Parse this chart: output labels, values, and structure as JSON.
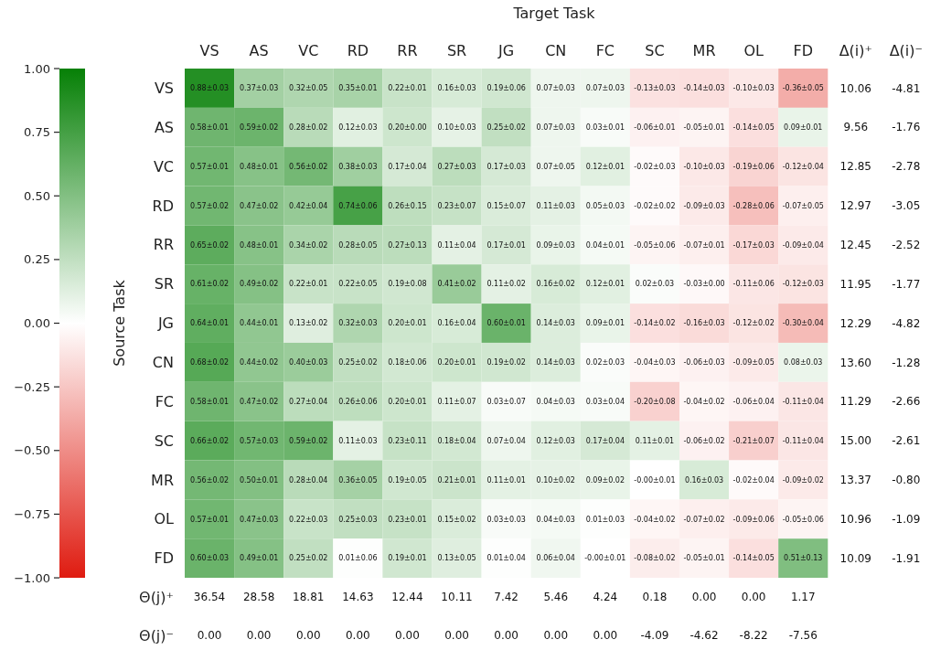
{
  "chart_data": [
    {
      "type": "heatmap",
      "xlabel": "Target Task",
      "ylabel": "Source Task",
      "categories": [
        "VS",
        "AS",
        "VC",
        "RD",
        "RR",
        "SR",
        "JG",
        "CN",
        "FC",
        "SC",
        "MR",
        "OL",
        "FD"
      ],
      "y_categories": [
        "VS",
        "AS",
        "VC",
        "RD",
        "RR",
        "SR",
        "JG",
        "CN",
        "FC",
        "SC",
        "MR",
        "OL",
        "FD"
      ],
      "cells": [
        [
          0.88,
          0.37,
          0.32,
          0.35,
          0.22,
          0.16,
          0.19,
          0.07,
          0.07,
          -0.13,
          -0.14,
          -0.1,
          -0.36
        ],
        [
          0.58,
          0.59,
          0.28,
          0.12,
          0.2,
          0.1,
          0.25,
          0.07,
          0.03,
          -0.06,
          -0.05,
          -0.14,
          0.09
        ],
        [
          0.57,
          0.48,
          0.56,
          0.38,
          0.17,
          0.27,
          0.17,
          0.07,
          0.12,
          -0.02,
          -0.1,
          -0.19,
          -0.12
        ],
        [
          0.57,
          0.47,
          0.42,
          0.74,
          0.26,
          0.23,
          0.15,
          0.11,
          0.05,
          -0.02,
          -0.09,
          -0.28,
          -0.07
        ],
        [
          0.65,
          0.48,
          0.34,
          0.28,
          0.27,
          0.11,
          0.17,
          0.09,
          0.04,
          -0.05,
          -0.07,
          -0.17,
          -0.09
        ],
        [
          0.61,
          0.49,
          0.22,
          0.22,
          0.19,
          0.41,
          0.11,
          0.16,
          0.12,
          0.02,
          -0.03,
          -0.11,
          -0.12
        ],
        [
          0.64,
          0.44,
          0.13,
          0.32,
          0.2,
          0.16,
          0.6,
          0.14,
          0.09,
          -0.14,
          -0.16,
          -0.12,
          -0.3
        ],
        [
          0.68,
          0.44,
          0.4,
          0.25,
          0.18,
          0.2,
          0.19,
          0.14,
          0.02,
          -0.04,
          -0.06,
          -0.09,
          0.08
        ],
        [
          0.58,
          0.47,
          0.27,
          0.26,
          0.2,
          0.11,
          0.03,
          0.04,
          0.03,
          -0.2,
          -0.04,
          -0.06,
          -0.11
        ],
        [
          0.66,
          0.57,
          0.59,
          0.11,
          0.23,
          0.18,
          0.07,
          0.12,
          0.17,
          0.11,
          -0.06,
          -0.21,
          -0.11
        ],
        [
          0.56,
          0.5,
          0.28,
          0.36,
          0.19,
          0.21,
          0.11,
          0.1,
          0.09,
          0.0,
          0.16,
          -0.02,
          -0.09
        ],
        [
          0.57,
          0.47,
          0.22,
          0.25,
          0.23,
          0.15,
          0.03,
          0.04,
          0.01,
          -0.04,
          -0.07,
          -0.09,
          -0.05
        ],
        [
          0.6,
          0.49,
          0.25,
          0.01,
          0.19,
          0.13,
          0.01,
          0.06,
          0.0,
          -0.08,
          -0.05,
          -0.14,
          0.51
        ]
      ],
      "cell_labels": [
        [
          "0.88±0.03",
          "0.37±0.03",
          "0.32±0.05",
          "0.35±0.01",
          "0.22±0.01",
          "0.16±0.03",
          "0.19±0.06",
          "0.07±0.03",
          "0.07±0.03",
          "-0.13±0.03",
          "-0.14±0.03",
          "-0.10±0.03",
          "-0.36±0.05"
        ],
        [
          "0.58±0.01",
          "0.59±0.02",
          "0.28±0.02",
          "0.12±0.03",
          "0.20±0.00",
          "0.10±0.03",
          "0.25±0.02",
          "0.07±0.03",
          "0.03±0.01",
          "-0.06±0.01",
          "-0.05±0.01",
          "-0.14±0.05",
          "0.09±0.01"
        ],
        [
          "0.57±0.01",
          "0.48±0.01",
          "0.56±0.02",
          "0.38±0.03",
          "0.17±0.04",
          "0.27±0.03",
          "0.17±0.03",
          "0.07±0.05",
          "0.12±0.01",
          "-0.02±0.03",
          "-0.10±0.03",
          "-0.19±0.06",
          "-0.12±0.04"
        ],
        [
          "0.57±0.02",
          "0.47±0.02",
          "0.42±0.04",
          "0.74±0.06",
          "0.26±0.15",
          "0.23±0.07",
          "0.15±0.07",
          "0.11±0.03",
          "0.05±0.03",
          "-0.02±0.02",
          "-0.09±0.03",
          "-0.28±0.06",
          "-0.07±0.05"
        ],
        [
          "0.65±0.02",
          "0.48±0.01",
          "0.34±0.02",
          "0.28±0.05",
          "0.27±0.13",
          "0.11±0.04",
          "0.17±0.01",
          "0.09±0.03",
          "0.04±0.01",
          "-0.05±0.06",
          "-0.07±0.01",
          "-0.17±0.03",
          "-0.09±0.04"
        ],
        [
          "0.61±0.02",
          "0.49±0.02",
          "0.22±0.01",
          "0.22±0.05",
          "0.19±0.08",
          "0.41±0.02",
          "0.11±0.02",
          "0.16±0.02",
          "0.12±0.01",
          "0.02±0.03",
          "-0.03±0.00",
          "-0.11±0.06",
          "-0.12±0.03"
        ],
        [
          "0.64±0.01",
          "0.44±0.01",
          "0.13±0.02",
          "0.32±0.03",
          "0.20±0.01",
          "0.16±0.04",
          "0.60±0.01",
          "0.14±0.03",
          "0.09±0.01",
          "-0.14±0.02",
          "-0.16±0.03",
          "-0.12±0.02",
          "-0.30±0.04"
        ],
        [
          "0.68±0.02",
          "0.44±0.02",
          "0.40±0.03",
          "0.25±0.02",
          "0.18±0.06",
          "0.20±0.01",
          "0.19±0.02",
          "0.14±0.03",
          "0.02±0.03",
          "-0.04±0.03",
          "-0.06±0.03",
          "-0.09±0.05",
          "0.08±0.03"
        ],
        [
          "0.58±0.01",
          "0.47±0.02",
          "0.27±0.04",
          "0.26±0.06",
          "0.20±0.01",
          "0.11±0.07",
          "0.03±0.07",
          "0.04±0.03",
          "0.03±0.04",
          "-0.20±0.08",
          "-0.04±0.02",
          "-0.06±0.04",
          "-0.11±0.04"
        ],
        [
          "0.66±0.02",
          "0.57±0.03",
          "0.59±0.02",
          "0.11±0.03",
          "0.23±0.11",
          "0.18±0.04",
          "0.07±0.04",
          "0.12±0.03",
          "0.17±0.04",
          "0.11±0.01",
          "-0.06±0.02",
          "-0.21±0.07",
          "-0.11±0.04"
        ],
        [
          "0.56±0.02",
          "0.50±0.01",
          "0.28±0.04",
          "0.36±0.05",
          "0.19±0.05",
          "0.21±0.01",
          "0.11±0.01",
          "0.10±0.02",
          "0.09±0.02",
          "-0.00±0.01",
          "0.16±0.03",
          "-0.02±0.04",
          "-0.09±0.02"
        ],
        [
          "0.57±0.01",
          "0.47±0.03",
          "0.22±0.03",
          "0.25±0.03",
          "0.23±0.01",
          "0.15±0.02",
          "0.03±0.03",
          "0.04±0.03",
          "0.01±0.03",
          "-0.04±0.02",
          "-0.07±0.02",
          "-0.09±0.06",
          "-0.05±0.06"
        ],
        [
          "0.60±0.03",
          "0.49±0.01",
          "0.25±0.02",
          "0.01±0.06",
          "0.19±0.01",
          "0.13±0.05",
          "0.01±0.04",
          "0.06±0.04",
          "-0.00±0.01",
          "-0.08±0.02",
          "-0.05±0.01",
          "-0.14±0.05",
          "0.51±0.13"
        ]
      ],
      "colors": [
        "#df1b10",
        "#ffffff",
        "#068006"
      ],
      "clim": [
        -1,
        1
      ],
      "cticks": [
        {
          "value": -1,
          "label": "−1.00"
        },
        {
          "value": -0.75,
          "label": "−0.75"
        },
        {
          "value": -0.5,
          "label": "−0.50"
        },
        {
          "value": -0.25,
          "label": "−0.25"
        },
        {
          "value": 0,
          "label": "0.00"
        },
        {
          "value": 0.25,
          "label": "0.25"
        },
        {
          "value": 0.5,
          "label": "0.50"
        },
        {
          "value": 0.75,
          "label": "0.75"
        },
        {
          "value": 1,
          "label": "1.00"
        }
      ]
    },
    {
      "type": "heatmap",
      "categories": [
        "Δ(i)⁺",
        "Δ(i)⁻"
      ],
      "y_categories": [
        null,
        null,
        null,
        null,
        null,
        null,
        null,
        null,
        null,
        null,
        null,
        null,
        null
      ],
      "cells": [
        [
          10.06,
          -4.81
        ],
        [
          9.56,
          -1.76
        ],
        [
          12.85,
          -2.78
        ],
        [
          12.97,
          -3.05
        ],
        [
          12.45,
          -2.52
        ],
        [
          11.95,
          -1.77
        ],
        [
          12.29,
          -4.82
        ],
        [
          13.6,
          -1.28
        ],
        [
          11.29,
          -2.66
        ],
        [
          15.0,
          -2.61
        ],
        [
          13.37,
          -0.8
        ],
        [
          10.96,
          -1.09
        ],
        [
          10.09,
          -1.91
        ]
      ],
      "cell_labels": [
        [
          "10.06",
          "-4.81"
        ],
        [
          "9.56",
          "-1.76"
        ],
        [
          "12.85",
          "-2.78"
        ],
        [
          "12.97",
          "-3.05"
        ],
        [
          "12.45",
          "-2.52"
        ],
        [
          "11.95",
          "-1.77"
        ],
        [
          "12.29",
          "-4.82"
        ],
        [
          "13.60",
          "-1.28"
        ],
        [
          "11.29",
          "-2.66"
        ],
        [
          "15.00",
          "-2.61"
        ],
        [
          "13.37",
          "-0.80"
        ],
        [
          "10.96",
          "-1.09"
        ],
        [
          "10.09",
          "-1.91"
        ]
      ]
    },
    {
      "type": "heatmap",
      "categories": [
        null,
        null,
        null,
        null,
        null,
        null,
        null,
        null,
        null,
        null,
        null,
        null,
        null
      ],
      "y_categories": [
        "Θ(j)⁺",
        "Θ(j)⁻"
      ],
      "cells": [
        [
          36.54,
          28.58,
          18.81,
          14.63,
          12.44,
          10.11,
          7.42,
          5.46,
          4.24,
          0.18,
          0.0,
          0.0,
          1.17
        ],
        [
          0.0,
          0.0,
          0.0,
          0.0,
          0.0,
          0.0,
          0.0,
          0.0,
          0.0,
          -4.09,
          -4.62,
          -8.22,
          -7.56
        ]
      ],
      "cell_labels": [
        [
          "36.54",
          "28.58",
          "18.81",
          "14.63",
          "12.44",
          "10.11",
          "7.42",
          "5.46",
          "4.24",
          "0.18",
          "0.00",
          "0.00",
          "1.17"
        ],
        [
          "0.00",
          "0.00",
          "0.00",
          "0.00",
          "0.00",
          "0.00",
          "0.00",
          "0.00",
          "0.00",
          "-4.09",
          "-4.62",
          "-8.22",
          "-7.56"
        ]
      ]
    }
  ]
}
